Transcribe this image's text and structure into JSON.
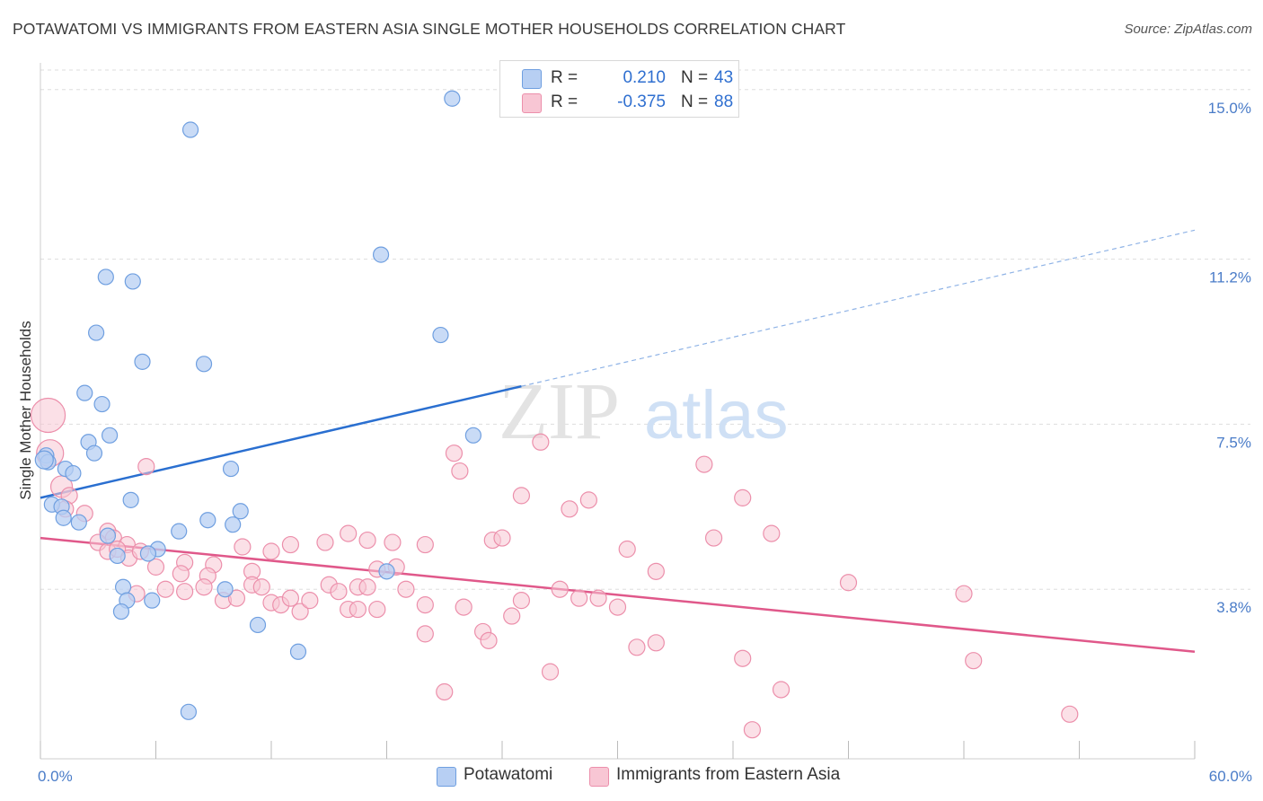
{
  "title": "POTAWATOMI VS IMMIGRANTS FROM EASTERN ASIA SINGLE MOTHER HOUSEHOLDS CORRELATION CHART",
  "source": "Source: ZipAtlas.com",
  "watermark": {
    "zip": "ZIP",
    "atlas": "atlas"
  },
  "legend": {
    "r_label": "R =",
    "n_label": "N =",
    "rows": [
      {
        "r": "0.210",
        "n": "43"
      },
      {
        "r": "-0.375",
        "n": "88"
      }
    ]
  },
  "colors": {
    "blue_fill": "#b7cff3",
    "blue_stroke": "#6f9fe0",
    "blue_line": "#2a6fd0",
    "pink_fill": "#f8c6d4",
    "pink_stroke": "#ec8fab",
    "pink_line": "#e0588a",
    "tick_text": "#4a7cc8",
    "grid": "#dddddd"
  },
  "chart_data": {
    "type": "scatter",
    "title": "POTAWATOMI VS IMMIGRANTS FROM EASTERN ASIA SINGLE MOTHER HOUSEHOLDS CORRELATION CHART",
    "xlabel": "",
    "ylabel": "Single Mother Households",
    "xlim": [
      0,
      60
    ],
    "ylim": [
      0,
      15.6
    ],
    "x_tick_labels": [
      "0.0%",
      "60.0%"
    ],
    "y_ticks": [
      3.8,
      7.5,
      11.2,
      15.0
    ],
    "y_tick_labels": [
      "3.8%",
      "7.5%",
      "11.2%",
      "15.0%"
    ],
    "grid": true,
    "legend_position": "bottom",
    "series": [
      {
        "name": "Potawatomi",
        "color": "#6f9fe0",
        "trend": {
          "x": [
            0,
            25
          ],
          "y": [
            5.85,
            8.35
          ],
          "dashed_extension": {
            "x": [
              25,
              60
            ],
            "y": [
              8.35,
              11.85
            ]
          }
        },
        "points": [
          [
            21.4,
            14.8
          ],
          [
            7.8,
            14.1
          ],
          [
            17.7,
            11.3
          ],
          [
            3.4,
            10.8
          ],
          [
            4.8,
            10.7
          ],
          [
            20.8,
            9.5
          ],
          [
            2.9,
            9.55
          ],
          [
            5.3,
            8.9
          ],
          [
            8.5,
            8.85
          ],
          [
            2.3,
            8.2
          ],
          [
            3.2,
            7.95
          ],
          [
            3.6,
            7.25
          ],
          [
            22.5,
            7.25
          ],
          [
            2.5,
            7.1
          ],
          [
            2.8,
            6.85
          ],
          [
            0.3,
            6.8
          ],
          [
            0.4,
            6.65
          ],
          [
            1.3,
            6.5
          ],
          [
            1.7,
            6.4
          ],
          [
            9.9,
            6.5
          ],
          [
            4.7,
            5.8
          ],
          [
            0.6,
            5.7
          ],
          [
            1.1,
            5.65
          ],
          [
            10.4,
            5.55
          ],
          [
            1.2,
            5.4
          ],
          [
            8.7,
            5.35
          ],
          [
            2.0,
            5.3
          ],
          [
            10.0,
            5.25
          ],
          [
            7.2,
            5.1
          ],
          [
            3.5,
            5.0
          ],
          [
            6.1,
            4.7
          ],
          [
            5.6,
            4.6
          ],
          [
            4.0,
            4.55
          ],
          [
            18.0,
            4.2
          ],
          [
            4.3,
            3.85
          ],
          [
            9.6,
            3.8
          ],
          [
            4.5,
            3.55
          ],
          [
            5.8,
            3.55
          ],
          [
            4.2,
            3.3
          ],
          [
            11.3,
            3.0
          ],
          [
            13.4,
            2.4
          ],
          [
            7.7,
            1.05
          ],
          [
            0.2,
            6.7
          ]
        ]
      },
      {
        "name": "Immigrants from Eastern Asia",
        "color": "#ec8fab",
        "trend": {
          "x": [
            0,
            60
          ],
          "y": [
            4.95,
            2.4
          ]
        },
        "points": [
          [
            0.4,
            7.7
          ],
          [
            0.5,
            6.85
          ],
          [
            5.5,
            6.55
          ],
          [
            1.1,
            6.1
          ],
          [
            1.5,
            5.9
          ],
          [
            1.3,
            5.6
          ],
          [
            2.3,
            5.5
          ],
          [
            3.5,
            5.1
          ],
          [
            3.8,
            4.95
          ],
          [
            4.5,
            4.8
          ],
          [
            3.0,
            4.85
          ],
          [
            3.5,
            4.65
          ],
          [
            4.0,
            4.7
          ],
          [
            4.6,
            4.5
          ],
          [
            5.2,
            4.65
          ],
          [
            6.0,
            4.3
          ],
          [
            7.5,
            4.4
          ],
          [
            9.0,
            4.35
          ],
          [
            11.0,
            4.2
          ],
          [
            7.3,
            4.15
          ],
          [
            8.7,
            4.1
          ],
          [
            10.5,
            4.75
          ],
          [
            12.0,
            4.65
          ],
          [
            13.0,
            4.8
          ],
          [
            14.8,
            4.85
          ],
          [
            16.0,
            5.05
          ],
          [
            17.0,
            4.9
          ],
          [
            18.3,
            4.85
          ],
          [
            20.0,
            4.8
          ],
          [
            21.5,
            6.85
          ],
          [
            21.8,
            6.45
          ],
          [
            23.5,
            4.9
          ],
          [
            24.0,
            4.95
          ],
          [
            25.0,
            5.9
          ],
          [
            26.0,
            7.1
          ],
          [
            27.5,
            5.6
          ],
          [
            28.5,
            5.8
          ],
          [
            30.5,
            4.7
          ],
          [
            32.0,
            4.2
          ],
          [
            34.5,
            6.6
          ],
          [
            35.0,
            4.95
          ],
          [
            36.5,
            5.85
          ],
          [
            38.0,
            5.05
          ],
          [
            42.0,
            3.95
          ],
          [
            48.0,
            3.7
          ],
          [
            5.0,
            3.7
          ],
          [
            6.5,
            3.8
          ],
          [
            7.5,
            3.75
          ],
          [
            8.5,
            3.85
          ],
          [
            9.5,
            3.55
          ],
          [
            10.2,
            3.6
          ],
          [
            11.0,
            3.9
          ],
          [
            11.5,
            3.85
          ],
          [
            12.0,
            3.5
          ],
          [
            12.5,
            3.45
          ],
          [
            13.0,
            3.6
          ],
          [
            13.5,
            3.3
          ],
          [
            14.0,
            3.55
          ],
          [
            15.0,
            3.9
          ],
          [
            15.5,
            3.75
          ],
          [
            16.0,
            3.35
          ],
          [
            16.5,
            3.85
          ],
          [
            17.0,
            3.85
          ],
          [
            17.5,
            4.25
          ],
          [
            18.5,
            4.3
          ],
          [
            19.0,
            3.8
          ],
          [
            20.0,
            3.45
          ],
          [
            22.0,
            3.4
          ],
          [
            23.0,
            2.85
          ],
          [
            23.3,
            2.65
          ],
          [
            24.5,
            3.2
          ],
          [
            25.0,
            3.55
          ],
          [
            27.0,
            3.8
          ],
          [
            28.0,
            3.6
          ],
          [
            29.0,
            3.6
          ],
          [
            30.0,
            3.4
          ],
          [
            31.0,
            2.5
          ],
          [
            32.0,
            2.6
          ],
          [
            36.5,
            2.25
          ],
          [
            38.5,
            1.55
          ],
          [
            48.5,
            2.2
          ],
          [
            20.0,
            2.8
          ],
          [
            21.0,
            1.5
          ],
          [
            26.5,
            1.95
          ],
          [
            16.5,
            3.35
          ],
          [
            37.0,
            0.65
          ],
          [
            53.5,
            1.0
          ],
          [
            17.5,
            3.35
          ]
        ]
      }
    ]
  },
  "bottom_legend": [
    "Potawatomi",
    "Immigrants from Eastern Asia"
  ]
}
